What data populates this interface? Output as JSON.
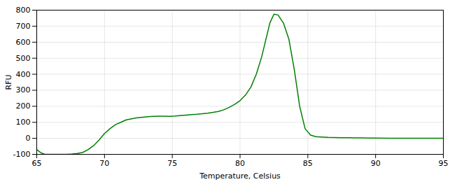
{
  "chart_data": {
    "type": "line",
    "xlabel": "Temperature, Celsius",
    "ylabel": "RFU",
    "x": [
      65.0,
      65.3,
      65.6,
      66.0,
      66.4,
      66.8,
      67.2,
      67.6,
      68.0,
      68.4,
      68.8,
      69.2,
      69.6,
      70.0,
      70.4,
      70.8,
      71.2,
      71.6,
      72.0,
      72.4,
      72.8,
      73.2,
      73.6,
      74.0,
      74.4,
      74.8,
      75.2,
      75.6,
      76.0,
      76.4,
      76.8,
      77.2,
      77.6,
      78.0,
      78.4,
      78.8,
      79.2,
      79.6,
      80.0,
      80.4,
      80.8,
      81.2,
      81.6,
      82.0,
      82.2,
      82.5,
      82.8,
      83.2,
      83.6,
      84.0,
      84.4,
      84.8,
      85.2,
      85.6,
      86.0,
      86.5,
      87.0,
      87.5,
      88.0,
      88.5,
      89.0,
      89.5,
      90.0,
      91.0,
      92.0,
      93.0,
      94.0,
      95.0
    ],
    "values": [
      -70,
      -90,
      -100,
      -100,
      -100,
      -100,
      -100,
      -98,
      -95,
      -88,
      -70,
      -45,
      -10,
      30,
      60,
      85,
      100,
      115,
      122,
      128,
      132,
      135,
      137,
      138,
      138,
      137,
      139,
      142,
      145,
      148,
      150,
      153,
      157,
      162,
      168,
      178,
      193,
      212,
      235,
      270,
      320,
      400,
      510,
      650,
      720,
      775,
      770,
      720,
      620,
      430,
      200,
      60,
      20,
      10,
      8,
      6,
      5,
      4,
      4,
      3,
      3,
      2,
      2,
      1,
      1,
      0,
      0,
      0
    ],
    "color": "#008000",
    "xlim": [
      65,
      95
    ],
    "ylim": [
      -100,
      800
    ],
    "xticks": [
      65,
      70,
      75,
      80,
      85,
      90,
      95
    ],
    "yticks": [
      -100,
      0,
      100,
      200,
      300,
      400,
      500,
      600,
      700,
      800
    ],
    "grid": true
  }
}
